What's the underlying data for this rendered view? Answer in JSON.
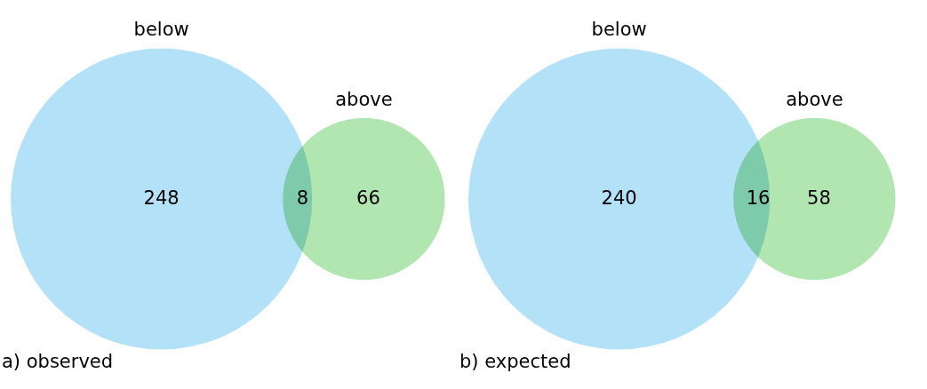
{
  "chart_data": [
    {
      "type": "other",
      "title": "a) observed",
      "categories": [
        "below",
        null,
        "above"
      ],
      "values": [
        248,
        8,
        66
      ],
      "colors": [
        "#b3e1f7",
        null,
        "#b2e6b0"
      ],
      "data_labels": true
    },
    {
      "type": "other",
      "title": "b) expected",
      "categories": [
        "below",
        null,
        "above"
      ],
      "values": [
        240,
        16,
        58
      ],
      "colors": [
        "#b3e1f7",
        null,
        "#b2e6b0"
      ],
      "data_labels": true
    }
  ]
}
